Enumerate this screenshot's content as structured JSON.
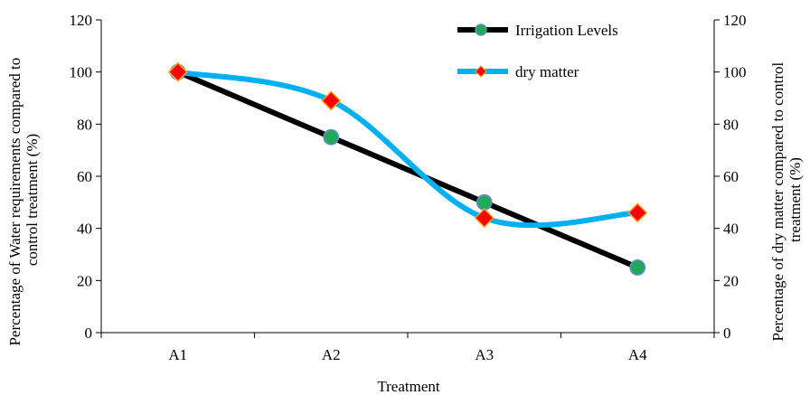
{
  "chart_data": {
    "type": "line",
    "categories": [
      "A1",
      "A2",
      "A3",
      "A4"
    ],
    "xlabel": "Treatment",
    "ylabel_left": [
      "Percentage of Water requirements compared to",
      "control treatment (%)"
    ],
    "ylabel_right": [
      "Percentage of dry matter compared to control",
      "treatment  (%)"
    ],
    "ylim": [
      0,
      120
    ],
    "yticks": [
      0,
      20,
      40,
      60,
      80,
      100,
      120
    ],
    "grid": false,
    "legend_position": "top-right",
    "series": [
      {
        "name": "Irrigation Levels",
        "values": [
          100,
          75,
          50,
          25
        ],
        "line_color": "#000000",
        "marker": "circle",
        "marker_fill": "#1faa59",
        "marker_edge": "#5b8fbf",
        "smooth": false,
        "axis": "left"
      },
      {
        "name": "dry matter",
        "values": [
          100,
          89,
          44,
          46
        ],
        "line_color": "#00b0f0",
        "marker": "diamond",
        "marker_fill": "#ff0000",
        "marker_edge": "#f5a623",
        "smooth": true,
        "axis": "right"
      }
    ]
  }
}
